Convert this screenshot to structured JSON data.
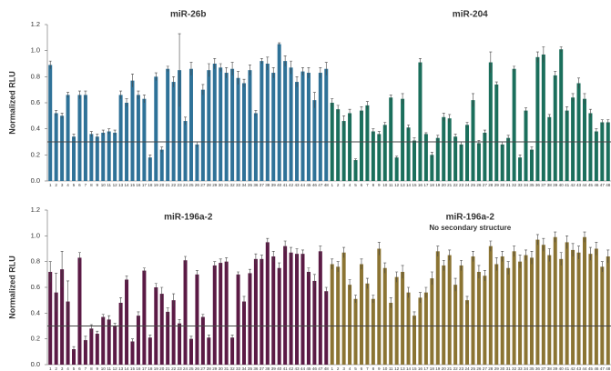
{
  "chart_data": [
    {
      "type": "bar",
      "ylabel": "Normalized RLU",
      "ylim": [
        0,
        1.2
      ],
      "yticks": [
        {
          "value": 0,
          "label": "0.0"
        },
        0.2,
        0.4,
        0.6,
        0.8,
        {
          "value": 1,
          "label": "1.0"
        },
        1.2
      ],
      "hline": 0.3,
      "categories": [
        "1",
        "2",
        "3",
        "4",
        "5",
        "6",
        "7",
        "8",
        "9",
        "10",
        "11",
        "12",
        "13",
        "14",
        "15",
        "16",
        "17",
        "18",
        "19",
        "20",
        "21",
        "22",
        "23",
        "24",
        "25",
        "26",
        "27",
        "28",
        "29",
        "30",
        "31",
        "32",
        "33",
        "34",
        "35",
        "36",
        "37",
        "38",
        "39",
        "40",
        "41",
        "42",
        "43",
        "44",
        "45",
        "46",
        "47",
        "48"
      ],
      "series": [
        {
          "name": "miR-26b",
          "color": "#2f7298",
          "values": [
            0.89,
            0.52,
            0.5,
            0.66,
            0.34,
            0.66,
            0.66,
            0.36,
            0.34,
            0.37,
            0.38,
            0.37,
            0.66,
            0.6,
            0.77,
            0.66,
            0.63,
            0.18,
            0.8,
            0.24,
            0.86,
            0.76,
            0.85,
            0.46,
            0.86,
            0.28,
            0.7,
            0.85,
            0.9,
            0.87,
            0.83,
            0.86,
            0.79,
            0.75,
            0.85,
            0.52,
            0.92,
            0.9,
            0.83,
            1.05,
            0.92,
            0.87,
            0.76,
            0.84,
            0.83,
            0.62,
            0.83,
            0.86
          ],
          "errors": [
            0.03,
            0.02,
            0.02,
            0.02,
            0.02,
            0.03,
            0.03,
            0.02,
            0.02,
            0.02,
            0.02,
            0.02,
            0.03,
            0.03,
            0.05,
            0.03,
            0.03,
            0.02,
            0.03,
            0.02,
            0.02,
            0.04,
            0.28,
            0.03,
            0.05,
            0.02,
            0.04,
            0.05,
            0.04,
            0.03,
            0.04,
            0.05,
            0.05,
            0.03,
            0.04,
            0.02,
            0.02,
            0.05,
            0.04,
            0.01,
            0.04,
            0.05,
            0.04,
            0.03,
            0.04,
            0.06,
            0.04,
            0.05
          ]
        },
        {
          "name": "miR-204",
          "color": "#1b6f5c",
          "values": [
            0.6,
            0.55,
            0.46,
            0.52,
            0.16,
            0.54,
            0.58,
            0.38,
            0.36,
            0.43,
            0.64,
            0.18,
            0.63,
            0.41,
            0.31,
            0.91,
            0.36,
            0.2,
            0.33,
            0.49,
            0.48,
            0.34,
            0.28,
            0.43,
            0.62,
            0.29,
            0.37,
            0.91,
            0.74,
            0.28,
            0.33,
            0.86,
            0.18,
            0.54,
            0.24,
            0.95,
            0.97,
            0.49,
            0.81,
            1.01,
            0.54,
            0.64,
            0.75,
            0.63,
            0.52,
            0.38,
            0.45,
            0.45
          ],
          "errors": [
            0.03,
            0.03,
            0.04,
            0.03,
            0.01,
            0.03,
            0.03,
            0.02,
            0.02,
            0.02,
            0.02,
            0.01,
            0.04,
            0.02,
            0.02,
            0.03,
            0.01,
            0.02,
            0.02,
            0.03,
            0.03,
            0.02,
            0.02,
            0.02,
            0.05,
            0.02,
            0.02,
            0.08,
            0.02,
            0.02,
            0.02,
            0.02,
            0.02,
            0.02,
            0.02,
            0.04,
            0.06,
            0.02,
            0.03,
            0.02,
            0.03,
            0.03,
            0.04,
            0.04,
            0.03,
            0.02,
            0.02,
            0.02
          ]
        }
      ]
    },
    {
      "type": "bar",
      "ylabel": "Normalized RLU",
      "ylim": [
        0,
        1.2
      ],
      "yticks": [
        {
          "value": 0,
          "label": "0.0"
        },
        0.2,
        0.4,
        0.6,
        0.8,
        {
          "value": 1,
          "label": "1.0"
        },
        1.2
      ],
      "hline": 0.3,
      "categories": [
        "1",
        "2",
        "3",
        "4",
        "5",
        "6",
        "7",
        "8",
        "9",
        "10",
        "11",
        "12",
        "13",
        "14",
        "15",
        "16",
        "17",
        "18",
        "19",
        "20",
        "21",
        "22",
        "23",
        "24",
        "25",
        "26",
        "27",
        "28",
        "29",
        "30",
        "31",
        "32",
        "33",
        "34",
        "35",
        "36",
        "37",
        "38",
        "39",
        "40",
        "41",
        "42",
        "43",
        "44",
        "45",
        "46",
        "47",
        "48"
      ],
      "series": [
        {
          "name": "miR-196a-2",
          "color": "#5b1a45",
          "values": [
            0.72,
            0.56,
            0.74,
            0.49,
            0.12,
            0.83,
            0.19,
            0.28,
            0.24,
            0.37,
            0.35,
            0.3,
            0.48,
            0.66,
            0.18,
            0.38,
            0.73,
            0.21,
            0.6,
            0.55,
            0.41,
            0.5,
            0.32,
            0.81,
            0.2,
            0.7,
            0.37,
            0.21,
            0.77,
            0.79,
            0.8,
            0.21,
            0.7,
            0.49,
            0.71,
            0.82,
            0.82,
            0.95,
            0.84,
            0.75,
            0.92,
            0.87,
            0.86,
            0.86,
            0.72,
            0.65,
            0.88,
            0.57
          ],
          "errors": [
            0.08,
            0.15,
            0.14,
            0.16,
            0.02,
            0.04,
            0.03,
            0.03,
            0.02,
            0.02,
            0.03,
            0.02,
            0.04,
            0.03,
            0.02,
            0.03,
            0.02,
            0.02,
            0.03,
            0.05,
            0.03,
            0.05,
            0.03,
            0.03,
            0.02,
            0.03,
            0.02,
            0.02,
            0.03,
            0.03,
            0.03,
            0.02,
            0.02,
            0.04,
            0.03,
            0.04,
            0.03,
            0.03,
            0.04,
            0.04,
            0.04,
            0.04,
            0.04,
            0.03,
            0.03,
            0.05,
            0.04,
            0.03
          ]
        },
        {
          "name": "miR-196a-2",
          "note": "No secondary structure",
          "color": "#8b7433",
          "values": [
            0.78,
            0.76,
            0.87,
            0.62,
            0.51,
            0.78,
            0.63,
            0.51,
            0.9,
            0.75,
            0.48,
            0.68,
            0.72,
            0.56,
            0.38,
            0.52,
            0.56,
            0.67,
            0.88,
            0.77,
            0.85,
            0.62,
            0.77,
            0.5,
            0.84,
            0.72,
            0.69,
            0.92,
            0.78,
            0.84,
            0.75,
            0.88,
            0.8,
            0.85,
            0.83,
            0.97,
            0.93,
            0.85,
            0.99,
            0.82,
            0.95,
            0.89,
            0.87,
            0.99,
            0.86,
            0.9,
            0.76,
            0.84
          ],
          "errors": [
            0.04,
            0.04,
            0.04,
            0.04,
            0.03,
            0.04,
            0.04,
            0.03,
            0.05,
            0.04,
            0.04,
            0.04,
            0.05,
            0.04,
            0.03,
            0.04,
            0.04,
            0.05,
            0.04,
            0.04,
            0.04,
            0.05,
            0.04,
            0.03,
            0.04,
            0.05,
            0.04,
            0.04,
            0.05,
            0.04,
            0.05,
            0.04,
            0.05,
            0.04,
            0.05,
            0.04,
            0.05,
            0.05,
            0.04,
            0.05,
            0.05,
            0.05,
            0.05,
            0.04,
            0.05,
            0.05,
            0.04,
            0.05
          ]
        }
      ]
    }
  ]
}
